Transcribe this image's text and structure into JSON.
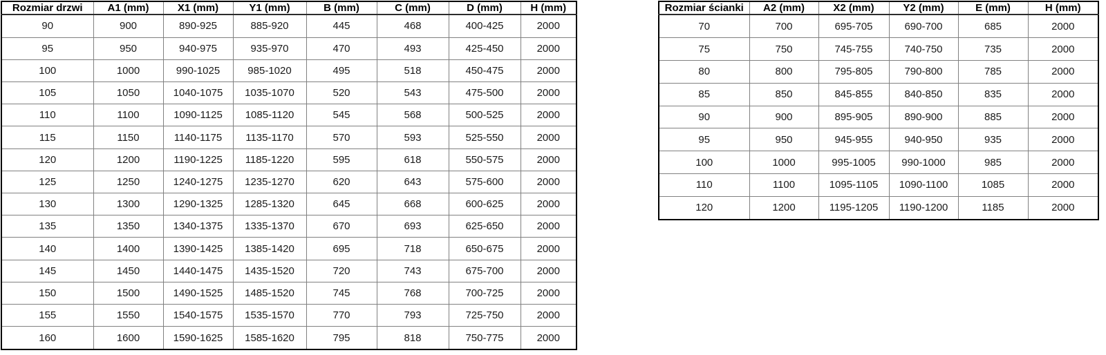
{
  "door_table": {
    "headers": [
      "Rozmiar drzwi",
      "A1 (mm)",
      "X1 (mm)",
      "Y1 (mm)",
      "B (mm)",
      "C (mm)",
      "D (mm)",
      "H (mm)"
    ],
    "rows": [
      [
        "90",
        "900",
        "890-925",
        "885-920",
        "445",
        "468",
        "400-425",
        "2000"
      ],
      [
        "95",
        "950",
        "940-975",
        "935-970",
        "470",
        "493",
        "425-450",
        "2000"
      ],
      [
        "100",
        "1000",
        "990-1025",
        "985-1020",
        "495",
        "518",
        "450-475",
        "2000"
      ],
      [
        "105",
        "1050",
        "1040-1075",
        "1035-1070",
        "520",
        "543",
        "475-500",
        "2000"
      ],
      [
        "110",
        "1100",
        "1090-1125",
        "1085-1120",
        "545",
        "568",
        "500-525",
        "2000"
      ],
      [
        "115",
        "1150",
        "1140-1175",
        "1135-1170",
        "570",
        "593",
        "525-550",
        "2000"
      ],
      [
        "120",
        "1200",
        "1190-1225",
        "1185-1220",
        "595",
        "618",
        "550-575",
        "2000"
      ],
      [
        "125",
        "1250",
        "1240-1275",
        "1235-1270",
        "620",
        "643",
        "575-600",
        "2000"
      ],
      [
        "130",
        "1300",
        "1290-1325",
        "1285-1320",
        "645",
        "668",
        "600-625",
        "2000"
      ],
      [
        "135",
        "1350",
        "1340-1375",
        "1335-1370",
        "670",
        "693",
        "625-650",
        "2000"
      ],
      [
        "140",
        "1400",
        "1390-1425",
        "1385-1420",
        "695",
        "718",
        "650-675",
        "2000"
      ],
      [
        "145",
        "1450",
        "1440-1475",
        "1435-1520",
        "720",
        "743",
        "675-700",
        "2000"
      ],
      [
        "150",
        "1500",
        "1490-1525",
        "1485-1520",
        "745",
        "768",
        "700-725",
        "2000"
      ],
      [
        "155",
        "1550",
        "1540-1575",
        "1535-1570",
        "770",
        "793",
        "725-750",
        "2000"
      ],
      [
        "160",
        "1600",
        "1590-1625",
        "1585-1620",
        "795",
        "818",
        "750-775",
        "2000"
      ]
    ]
  },
  "wall_table": {
    "headers": [
      "Rozmiar ścianki",
      "A2 (mm)",
      "X2 (mm)",
      "Y2 (mm)",
      "E (mm)",
      "H (mm)"
    ],
    "rows": [
      [
        "70",
        "700",
        "695-705",
        "690-700",
        "685",
        "2000"
      ],
      [
        "75",
        "750",
        "745-755",
        "740-750",
        "735",
        "2000"
      ],
      [
        "80",
        "800",
        "795-805",
        "790-800",
        "785",
        "2000"
      ],
      [
        "85",
        "850",
        "845-855",
        "840-850",
        "835",
        "2000"
      ],
      [
        "90",
        "900",
        "895-905",
        "890-900",
        "885",
        "2000"
      ],
      [
        "95",
        "950",
        "945-955",
        "940-950",
        "935",
        "2000"
      ],
      [
        "100",
        "1000",
        "995-1005",
        "990-1000",
        "985",
        "2000"
      ],
      [
        "110",
        "1100",
        "1095-1105",
        "1090-1100",
        "1085",
        "2000"
      ],
      [
        "120",
        "1200",
        "1195-1205",
        "1190-1200",
        "1185",
        "2000"
      ]
    ]
  },
  "colors": {
    "outer_border": "#000000",
    "inner_border": "#808080",
    "text": "#1a1a1a",
    "background": "#ffffff"
  }
}
